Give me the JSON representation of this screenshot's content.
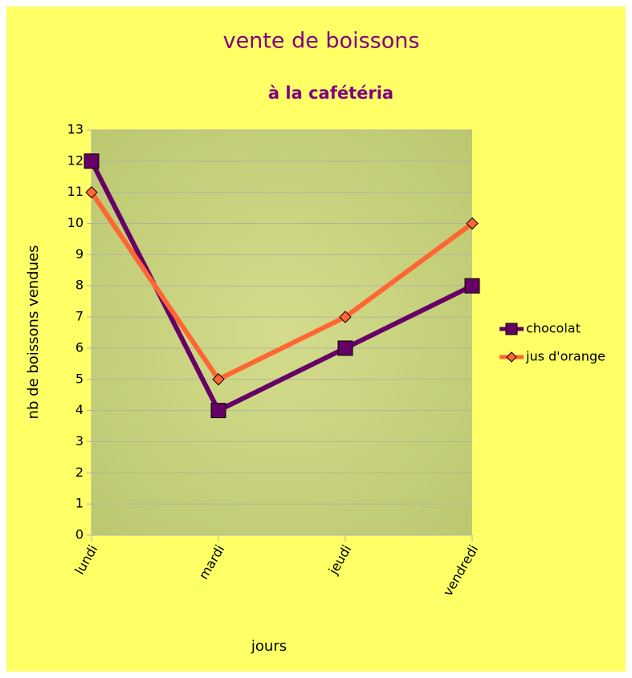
{
  "chart_data": {
    "type": "line",
    "title": "vente de boissons",
    "subtitle": "à la cafétéria",
    "x_label": "jours",
    "y_label": "nb de boissons vendues",
    "categories": [
      "lundi",
      "mardi",
      "jeudi",
      "vendredi"
    ],
    "series": [
      {
        "name": "chocolat",
        "color": "#660066",
        "marker": "square",
        "values": [
          12,
          4,
          6,
          8
        ]
      },
      {
        "name": "jus d'orange",
        "color": "#ff6633",
        "marker": "diamond",
        "values": [
          11,
          5,
          7,
          10
        ]
      }
    ],
    "ylim": [
      0,
      13
    ],
    "yticks": [
      0,
      1,
      2,
      3,
      4,
      5,
      6,
      7,
      8,
      9,
      10,
      11,
      12,
      13
    ],
    "grid": true,
    "legend": "right"
  }
}
